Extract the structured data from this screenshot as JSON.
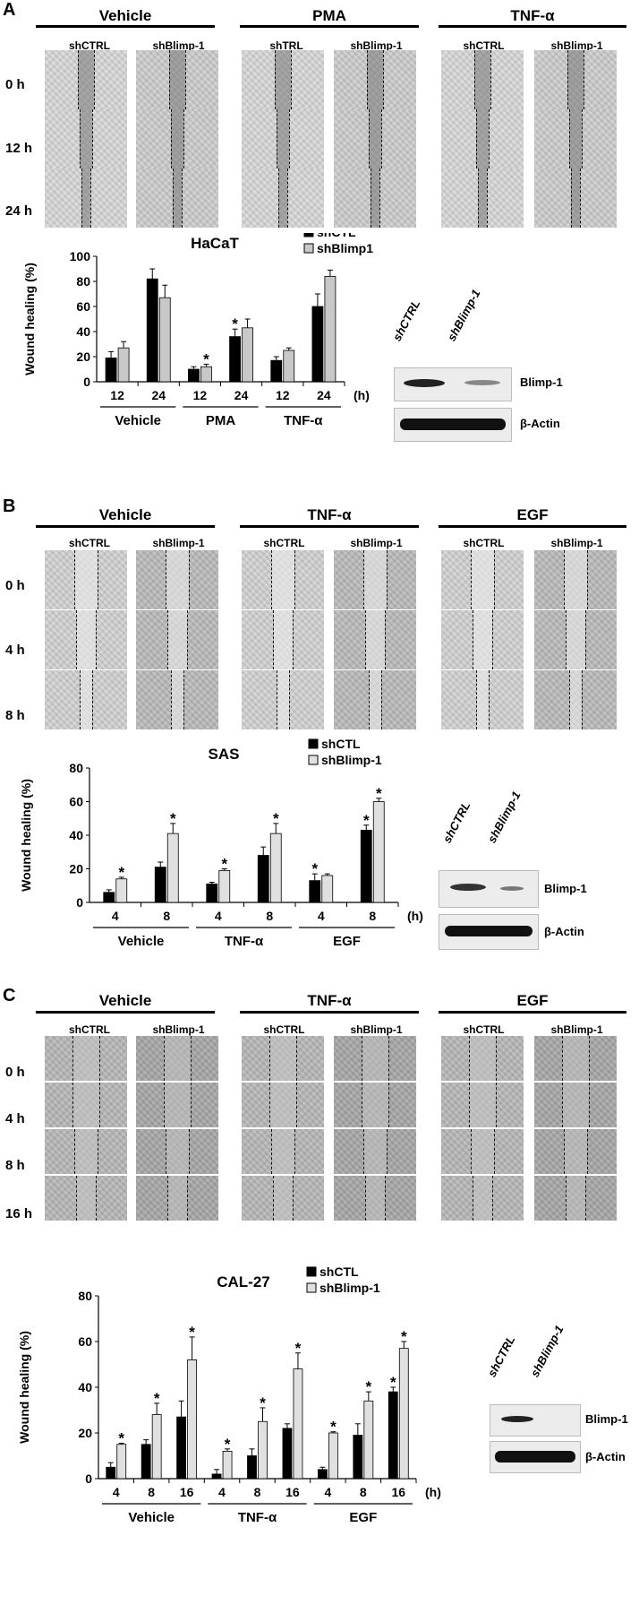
{
  "panels": [
    {
      "letter": "A",
      "groups": [
        "Vehicle",
        "PMA",
        "TNF-α"
      ],
      "columns": [
        [
          "shCTRL",
          "shBlimp-1"
        ],
        [
          "shTRL",
          "shBlimp-1"
        ],
        [
          "shCTRL",
          "shBlimp-1"
        ]
      ],
      "rows": [
        "0 h",
        "12 h",
        "24 h"
      ],
      "chart_data": {
        "type": "bar",
        "title": "HaCaT",
        "ylabel": "Wound healing (%)",
        "x_unit": "(h)",
        "ylim": [
          0,
          100
        ],
        "yticks": [
          0,
          20,
          40,
          60,
          80,
          100
        ],
        "groups": [
          "Vehicle",
          "PMA",
          "TNF-α"
        ],
        "categories": [
          "12",
          "24",
          "12",
          "24",
          "12",
          "24"
        ],
        "series": [
          {
            "name": "shCTL",
            "color": "#000000",
            "values": [
              19,
              82,
              10,
              36,
              17,
              60
            ],
            "errors": [
              5,
              8,
              2,
              6,
              3,
              10
            ]
          },
          {
            "name": "shBlimp1",
            "color": "#c8c8c8",
            "values": [
              27,
              67,
              12,
              43,
              25,
              84
            ],
            "errors": [
              5,
              10,
              2,
              7,
              2,
              5
            ]
          }
        ],
        "significance": [
          {
            "index": 2,
            "series": 1,
            "label": "*"
          },
          {
            "index": 3,
            "series": 0,
            "label": "*"
          }
        ],
        "legend_position": "top"
      },
      "blot": {
        "lanes": [
          "shCTRL",
          "shBlimp-1"
        ],
        "proteins": [
          "Blimp-1",
          "β-Actin"
        ]
      }
    },
    {
      "letter": "B",
      "groups": [
        "Vehicle",
        "TNF-α",
        "EGF"
      ],
      "columns": [
        [
          "shCTRL",
          "shBlimp-1"
        ],
        [
          "shCTRL",
          "shBlimp-1"
        ],
        [
          "shCTRL",
          "shBlimp-1"
        ]
      ],
      "rows": [
        "0 h",
        "4 h",
        "8 h"
      ],
      "chart_data": {
        "type": "bar",
        "title": "SAS",
        "ylabel": "Wound healing (%)",
        "x_unit": "(h)",
        "ylim": [
          0,
          80
        ],
        "yticks": [
          0,
          20,
          40,
          60,
          80
        ],
        "groups": [
          "Vehicle",
          "TNF-α",
          "EGF"
        ],
        "categories": [
          "4",
          "8",
          "4",
          "8",
          "4",
          "8"
        ],
        "series": [
          {
            "name": "shCTL",
            "color": "#000000",
            "values": [
              6,
              21,
              11,
              28,
              13,
              43
            ],
            "errors": [
              1.5,
              3,
              1,
              5,
              4,
              3
            ]
          },
          {
            "name": "shBlimp-1",
            "color": "#e0e0e0",
            "values": [
              14,
              41,
              19,
              41,
              16,
              60
            ],
            "errors": [
              1,
              6,
              1,
              6,
              1,
              2
            ]
          }
        ],
        "significance": [
          {
            "index": 0,
            "series": 1,
            "label": "*"
          },
          {
            "index": 1,
            "series": 1,
            "label": "*"
          },
          {
            "index": 2,
            "series": 1,
            "label": "*"
          },
          {
            "index": 3,
            "series": 1,
            "label": "*"
          },
          {
            "index": 4,
            "series": 0,
            "label": "*"
          },
          {
            "index": 5,
            "series": 0,
            "label": "*"
          },
          {
            "index": 5,
            "series": 1,
            "label": "*"
          }
        ],
        "legend_position": "top"
      },
      "blot": {
        "lanes": [
          "shCTRL",
          "shBlimp-1"
        ],
        "proteins": [
          "Blimp-1",
          "β-Actin"
        ]
      }
    },
    {
      "letter": "C",
      "groups": [
        "Vehicle",
        "TNF-α",
        "EGF"
      ],
      "columns": [
        [
          "shCTRL",
          "shBlimp-1"
        ],
        [
          "shCTRL",
          "shBlimp-1"
        ],
        [
          "shCTRL",
          "shBlimp-1"
        ]
      ],
      "rows": [
        "0 h",
        "4 h",
        "8 h",
        "16 h"
      ],
      "chart_data": {
        "type": "bar",
        "title": "CAL-27",
        "ylabel": "Wound healing (%)",
        "x_unit": "(h)",
        "ylim": [
          0,
          80
        ],
        "yticks": [
          0,
          20,
          40,
          60,
          80
        ],
        "groups": [
          "Vehicle",
          "TNF-α",
          "EGF"
        ],
        "categories": [
          "4",
          "8",
          "16",
          "4",
          "8",
          "16",
          "4",
          "8",
          "16"
        ],
        "series": [
          {
            "name": "shCTL",
            "color": "#000000",
            "values": [
              5,
              15,
              27,
              2,
              10,
              22,
              4,
              19,
              38
            ],
            "errors": [
              2,
              2,
              7,
              2,
              3,
              2,
              1,
              5,
              2
            ]
          },
          {
            "name": "shBlimp-1",
            "color": "#e0e0e0",
            "values": [
              15,
              28,
              52,
              12,
              25,
              48,
              20,
              34,
              57
            ],
            "errors": [
              0.5,
              5,
              10,
              1,
              6,
              7,
              0.5,
              4,
              3
            ]
          }
        ],
        "significance": [
          {
            "index": 0,
            "series": 1,
            "label": "*"
          },
          {
            "index": 1,
            "series": 1,
            "label": "*"
          },
          {
            "index": 2,
            "series": 1,
            "label": "*"
          },
          {
            "index": 3,
            "series": 1,
            "label": "*"
          },
          {
            "index": 4,
            "series": 1,
            "label": "*"
          },
          {
            "index": 5,
            "series": 1,
            "label": "*"
          },
          {
            "index": 6,
            "series": 1,
            "label": "*"
          },
          {
            "index": 7,
            "series": 1,
            "label": "*"
          },
          {
            "index": 8,
            "series": 0,
            "label": "*"
          },
          {
            "index": 8,
            "series": 1,
            "label": "*"
          }
        ],
        "legend_position": "top"
      },
      "blot": {
        "lanes": [
          "shCTRL",
          "shBlimp-1"
        ],
        "proteins": [
          "Blimp-1",
          "β-Actin"
        ]
      }
    }
  ]
}
